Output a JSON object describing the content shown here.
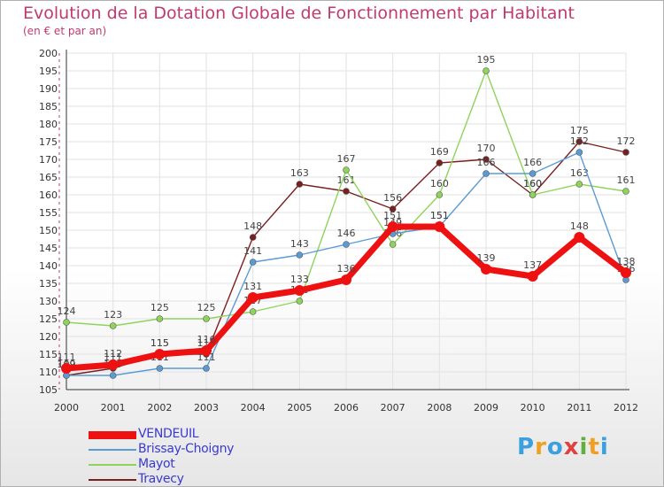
{
  "chart_data": {
    "type": "line",
    "title": "Evolution de la Dotation Globale de Fonctionnement par Habitant",
    "subtitle": "(en € et par an)",
    "x": [
      "2000",
      "2001",
      "2002",
      "2003",
      "2004",
      "2005",
      "2006",
      "2007",
      "2008",
      "2009",
      "2010",
      "2011",
      "2012"
    ],
    "ylim": [
      105,
      200
    ],
    "yticks": [
      105,
      110,
      115,
      120,
      125,
      130,
      135,
      140,
      145,
      150,
      155,
      160,
      165,
      170,
      175,
      180,
      185,
      190,
      195,
      200
    ],
    "grid": true,
    "series": [
      {
        "name": "VENDEUIL",
        "color": "#ee1111",
        "values": [
          111,
          112,
          115,
          116,
          131,
          133,
          136,
          151,
          151,
          139,
          137,
          148,
          138
        ]
      },
      {
        "name": "Brissay-Choigny",
        "color": "#5b9bd5",
        "values": [
          109,
          109,
          111,
          111,
          141,
          143,
          146,
          149,
          151,
          166,
          166,
          172,
          136
        ]
      },
      {
        "name": "Mayot",
        "color": "#8fd45a",
        "values": [
          124,
          123,
          125,
          125,
          127,
          130,
          167,
          146,
          160,
          195,
          160,
          163,
          161
        ]
      },
      {
        "name": "Travecy",
        "color": "#7a1f1f",
        "values": [
          109,
          111,
          115,
          115,
          148,
          163,
          161,
          156,
          169,
          170,
          160,
          175,
          172
        ]
      }
    ]
  },
  "brand": {
    "letters": [
      "P",
      "r",
      "o",
      "x",
      "i",
      "t",
      "i"
    ],
    "colors": [
      "#3aa0e0",
      "#f0a020",
      "#3aa0e0",
      "#e04040",
      "#60b040",
      "#f0a020",
      "#3aa0e0"
    ]
  }
}
